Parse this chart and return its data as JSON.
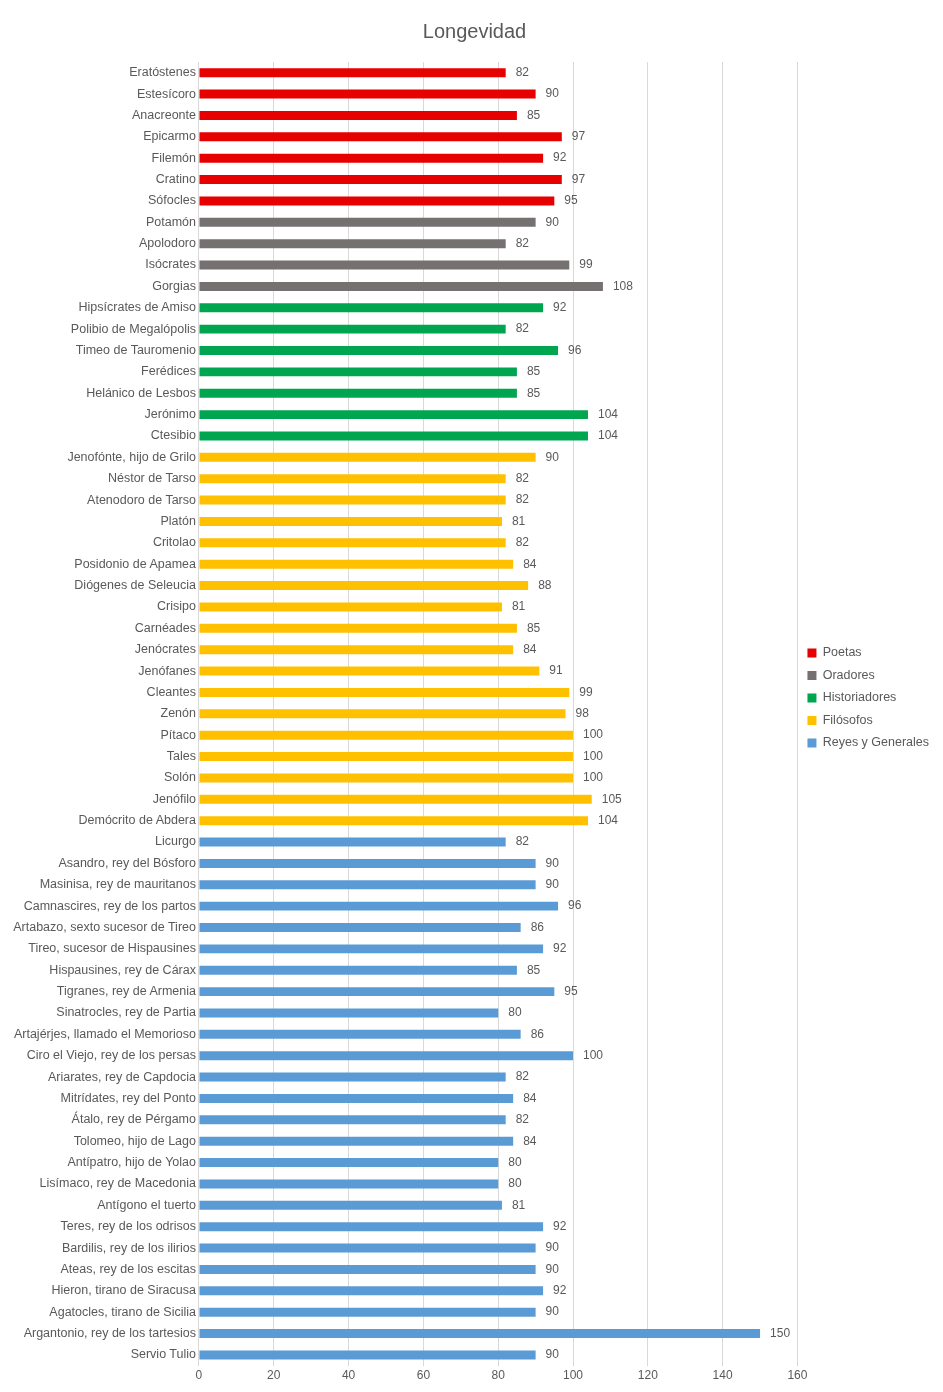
{
  "chart_data": {
    "type": "bar",
    "title": "Longevidad",
    "orientation": "horizontal",
    "data_labels": true,
    "grid": "x",
    "legend": "right",
    "categories": [
      "Eratóstenes",
      "Estesícoro",
      "Anacreonte",
      "Epicarmo",
      "Filemón",
      "Cratino",
      "Sófocles",
      "Potamón",
      "Apolodoro",
      "Isócrates",
      "Gorgias",
      "Hipsícrates de Amiso",
      "Polibio de Megalópolis",
      "Timeo de Tauromenio",
      "Ferédices",
      "Helánico de Lesbos",
      "Jerónimo",
      "Ctesibio",
      "Jenofónte, hijo de Grilo",
      "Néstor de Tarso",
      "Atenodoro de Tarso",
      "Platón",
      "Critolao",
      "Posidonio de Apamea",
      "Diógenes de Seleucia",
      "Crisipo",
      "Carnéades",
      "Jenócrates",
      "Jenófanes",
      "Cleantes",
      "Zenón",
      "Pítaco",
      "Tales",
      "Solón",
      "Jenófilo",
      "Demócrito de Abdera",
      "Licurgo",
      "Asandro, rey del Bósforo",
      "Masinisa, rey de mauritanos",
      "Camnascires, rey de los partos",
      "Artabazo, sexto sucesor de Tireo",
      "Tireo, sucesor de Hispausines",
      "Hispausines, rey de Cárax",
      "Tigranes, rey de Armenia",
      "Sinatrocles, rey de Partia",
      "Artajérjes, llamado el Memorioso",
      "Ciro el Viejo, rey de los persas",
      "Ariarates, rey de Capdocia",
      "Mitrídates, rey del Ponto",
      "Átalo, rey de Pérgamo",
      "Tolomeo, hijo de Lago",
      "Antípatro, hijo de Yolao",
      "Lisímaco, rey de Macedonia",
      "Antígono el tuerto",
      "Teres, rey de los odrisos",
      "Bardilis, rey de los ilirios",
      "Ateas, rey de los escitas",
      "Hieron, tirano de Siracusa",
      "Agatocles, tirano de Sicilia",
      "Argantonio, rey de los tartesios",
      "Servio Tulio"
    ],
    "series": [
      {
        "name": "Poetas",
        "color": "#e60000",
        "values": [
          82,
          90,
          85,
          97,
          92,
          97,
          95,
          null,
          null,
          null,
          null,
          null,
          null,
          null,
          null,
          null,
          null,
          null,
          null,
          null,
          null,
          null,
          null,
          null,
          null,
          null,
          null,
          null,
          null,
          null,
          null,
          null,
          null,
          null,
          null,
          null,
          null,
          null,
          null,
          null,
          null,
          null,
          null,
          null,
          null,
          null,
          null,
          null,
          null,
          null,
          null,
          null,
          null,
          null,
          null,
          null,
          null,
          null,
          null,
          null,
          null
        ]
      },
      {
        "name": "Oradores",
        "color": "#767171",
        "values": [
          null,
          null,
          null,
          null,
          null,
          null,
          null,
          90,
          82,
          99,
          108,
          null,
          null,
          null,
          null,
          null,
          null,
          null,
          null,
          null,
          null,
          null,
          null,
          null,
          null,
          null,
          null,
          null,
          null,
          null,
          null,
          null,
          null,
          null,
          null,
          null,
          null,
          null,
          null,
          null,
          null,
          null,
          null,
          null,
          null,
          null,
          null,
          null,
          null,
          null,
          null,
          null,
          null,
          null,
          null,
          null,
          null,
          null,
          null,
          null,
          null
        ]
      },
      {
        "name": "Historiadores",
        "color": "#00a550",
        "values": [
          null,
          null,
          null,
          null,
          null,
          null,
          null,
          null,
          null,
          null,
          null,
          92,
          82,
          96,
          85,
          85,
          104,
          104,
          null,
          null,
          null,
          null,
          null,
          null,
          null,
          null,
          null,
          null,
          null,
          null,
          null,
          null,
          null,
          null,
          null,
          null,
          null,
          null,
          null,
          null,
          null,
          null,
          null,
          null,
          null,
          null,
          null,
          null,
          null,
          null,
          null,
          null,
          null,
          null,
          null,
          null,
          null,
          null,
          null,
          null,
          null
        ]
      },
      {
        "name": "Filósofos",
        "color": "#ffc000",
        "values": [
          null,
          null,
          null,
          null,
          null,
          null,
          null,
          null,
          null,
          null,
          null,
          null,
          null,
          null,
          null,
          null,
          null,
          null,
          90,
          82,
          82,
          81,
          82,
          84,
          88,
          81,
          85,
          84,
          91,
          99,
          98,
          100,
          100,
          100,
          105,
          104,
          null,
          null,
          null,
          null,
          null,
          null,
          null,
          null,
          null,
          null,
          null,
          null,
          null,
          null,
          null,
          null,
          null,
          null,
          null,
          null,
          null,
          null,
          null,
          null,
          null
        ]
      },
      {
        "name": "Reyes y Generales",
        "color": "#5b9bd5",
        "values": [
          null,
          null,
          null,
          null,
          null,
          null,
          null,
          null,
          null,
          null,
          null,
          null,
          null,
          null,
          null,
          null,
          null,
          null,
          null,
          null,
          null,
          null,
          null,
          null,
          null,
          null,
          null,
          null,
          null,
          null,
          null,
          null,
          null,
          null,
          null,
          null,
          82,
          90,
          90,
          96,
          86,
          92,
          85,
          95,
          80,
          86,
          100,
          82,
          84,
          82,
          84,
          80,
          80,
          81,
          92,
          90,
          90,
          92,
          90,
          150,
          90
        ]
      }
    ],
    "xlim": [
      0,
      160
    ],
    "xticks": [
      0,
      20,
      40,
      60,
      80,
      100,
      120,
      140,
      160
    ]
  }
}
